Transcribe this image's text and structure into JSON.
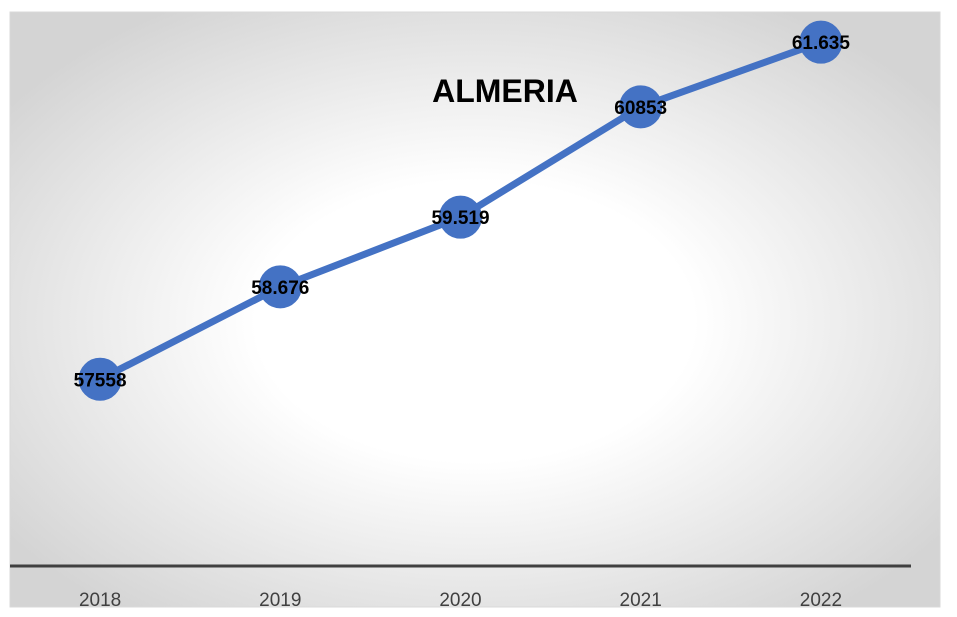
{
  "chart_data": {
    "type": "line",
    "title": "ALMERIA",
    "categories": [
      "2018",
      "2019",
      "2020",
      "2021",
      "2022"
    ],
    "series": [
      {
        "values": [
          57558,
          58676,
          59519,
          60853,
          61635
        ],
        "data_labels": [
          "57558",
          "58.676",
          "59.519",
          "60853",
          "61.635"
        ]
      }
    ],
    "xlabel": "",
    "ylabel": "",
    "ylim": [
      55300,
      62000
    ],
    "grid": false,
    "legend": "none",
    "y_axis_visible": false
  },
  "colors": {
    "line": "#4472c4",
    "marker": "#4472c4",
    "axis": "#404040",
    "plot_center": "#ffffff",
    "plot_edge": "#d4d4d4",
    "border": "#d9d9d9"
  }
}
